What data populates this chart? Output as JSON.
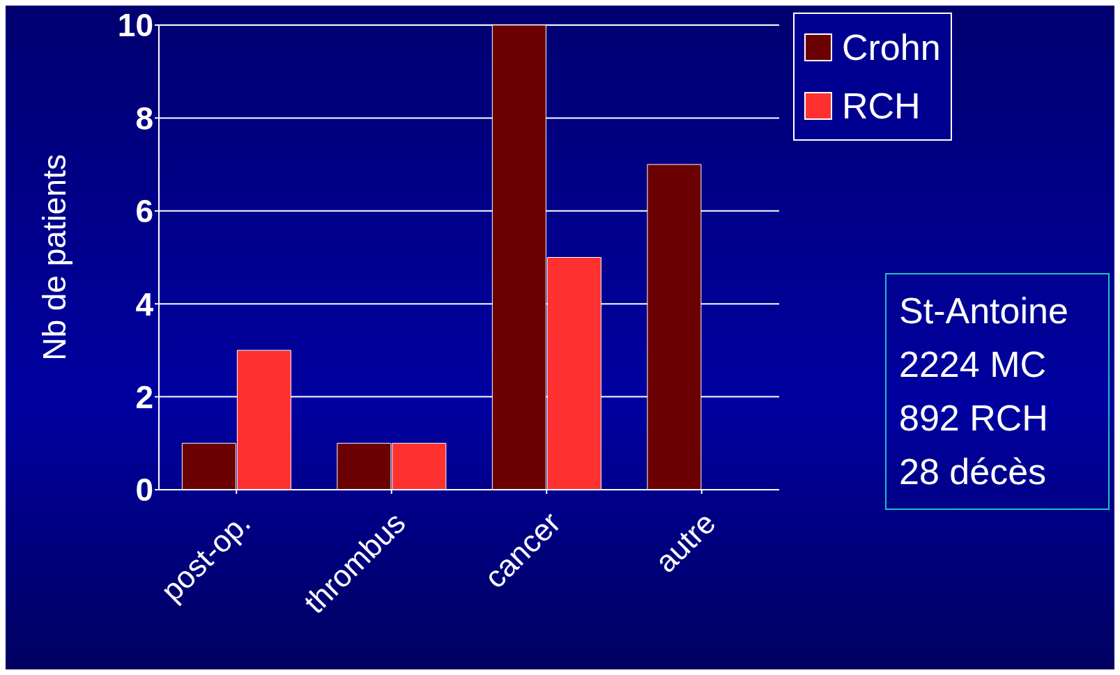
{
  "chart_data": {
    "type": "bar",
    "ylabel": "Nb de patients",
    "categories": [
      "post-op.",
      "thrombus",
      "cancer",
      "autre"
    ],
    "series": [
      {
        "name": "Crohn",
        "color": "#6b0000",
        "values": [
          1,
          1,
          10,
          7
        ]
      },
      {
        "name": "RCH",
        "color": "#ff3030",
        "values": [
          3,
          1,
          5,
          0
        ]
      }
    ],
    "ylim": [
      0,
      10
    ],
    "yticks": [
      0,
      2,
      4,
      6,
      8,
      10
    ],
    "grid": "y",
    "legend": "top right",
    "annotations": [
      "St-Antoine",
      "2224 MC",
      "892 RCH",
      "28 décès"
    ]
  }
}
